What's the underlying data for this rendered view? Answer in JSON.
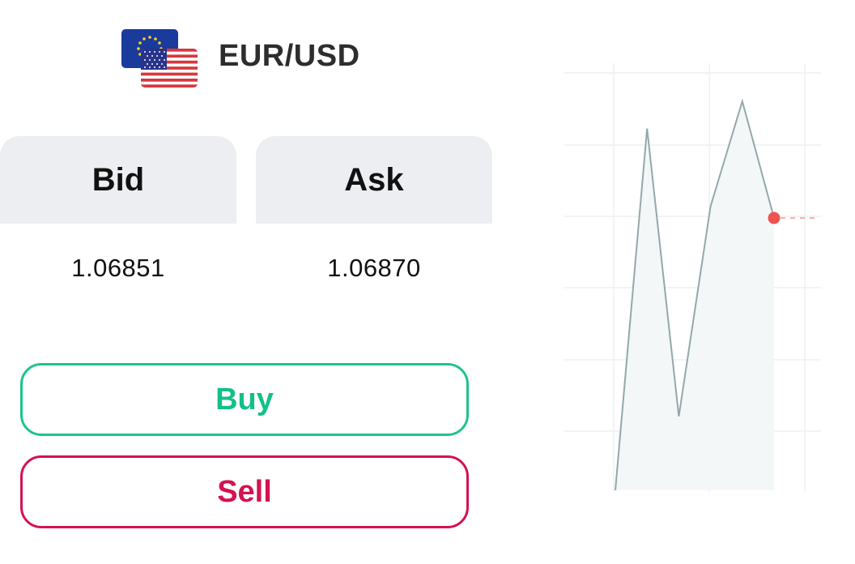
{
  "instrument": {
    "pair": "EUR/USD",
    "flags": [
      "eu-flag-icon",
      "us-flag-icon"
    ]
  },
  "quote": {
    "bid_label": "Bid",
    "ask_label": "Ask",
    "bid_value": "1.06851",
    "ask_value": "1.06870"
  },
  "actions": {
    "buy_label": "Buy",
    "sell_label": "Sell"
  },
  "colors": {
    "buy": "#12c08a",
    "sell": "#d4124f",
    "line": "#93a8ab",
    "area": "#f4f7f7",
    "marker": "#ef5350",
    "panel": "#eceef1"
  },
  "chart_data": {
    "type": "line",
    "y": [
      0.0,
      0.93,
      0.19,
      0.73,
      1.0,
      0.7
    ],
    "grid": true,
    "current_marker": true
  }
}
